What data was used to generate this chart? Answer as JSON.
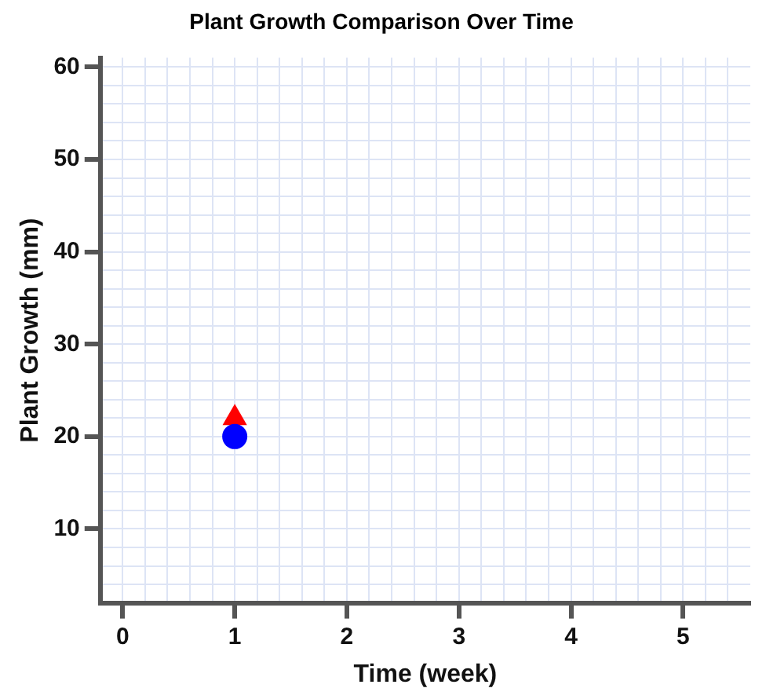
{
  "chart_data": {
    "type": "scatter",
    "title": "Plant Growth Comparison Over Time",
    "xlabel": "Time (week)",
    "ylabel": "Plant Growth (mm)",
    "x": [
      1
    ],
    "series": [
      {
        "color": "#0000ff",
        "values": [
          20
        ],
        "marker": "circle"
      },
      {
        "color": "#ff0000",
        "values": [
          22
        ],
        "marker": "triangle"
      }
    ],
    "xlim": [
      -0.2,
      5.6
    ],
    "ylim": [
      2,
      61
    ],
    "xticks": [
      {
        "value": -0.2,
        "label": null
      },
      0,
      {
        "value": 0.2,
        "label": null
      },
      {
        "value": 0.4,
        "label": null
      },
      {
        "value": 0.6,
        "label": null
      },
      {
        "value": 0.8,
        "label": null
      },
      1,
      {
        "value": 1.2,
        "label": null
      },
      {
        "value": 1.4,
        "label": null
      },
      {
        "value": 1.6,
        "label": null
      },
      {
        "value": 1.8,
        "label": null
      },
      2,
      {
        "value": 2.2,
        "label": null
      },
      {
        "value": 2.4,
        "label": null
      },
      {
        "value": 2.6,
        "label": null
      },
      {
        "value": 2.8,
        "label": null
      },
      3,
      {
        "value": 3.2,
        "label": null
      },
      {
        "value": 3.4,
        "label": null
      },
      {
        "value": 3.6,
        "label": null
      },
      {
        "value": 3.8,
        "label": null
      },
      4,
      {
        "value": 4.2,
        "label": null
      },
      {
        "value": 4.4,
        "label": null
      },
      {
        "value": 4.6,
        "label": null
      },
      {
        "value": 4.8,
        "label": null
      },
      5,
      {
        "value": 5.2,
        "label": null
      },
      {
        "value": 5.4,
        "label": null
      }
    ],
    "yticks": [
      {
        "value": 4,
        "label": null
      },
      {
        "value": 6,
        "label": null
      },
      {
        "value": 8,
        "label": null
      },
      10,
      {
        "value": 12,
        "label": null
      },
      {
        "value": 14,
        "label": null
      },
      {
        "value": 16,
        "label": null
      },
      {
        "value": 18,
        "label": null
      },
      20,
      {
        "value": 22,
        "label": null
      },
      {
        "value": 24,
        "label": null
      },
      {
        "value": 26,
        "label": null
      },
      {
        "value": 28,
        "label": null
      },
      30,
      {
        "value": 32,
        "label": null
      },
      {
        "value": 34,
        "label": null
      },
      {
        "value": 36,
        "label": null
      },
      {
        "value": 38,
        "label": null
      },
      40,
      {
        "value": 42,
        "label": null
      },
      {
        "value": 44,
        "label": null
      },
      {
        "value": 46,
        "label": null
      },
      {
        "value": 48,
        "label": null
      },
      50,
      {
        "value": 52,
        "label": null
      },
      {
        "value": 54,
        "label": null
      },
      {
        "value": 56,
        "label": null
      },
      {
        "value": 58,
        "label": null
      },
      60
    ],
    "grid": true,
    "legend": false
  }
}
